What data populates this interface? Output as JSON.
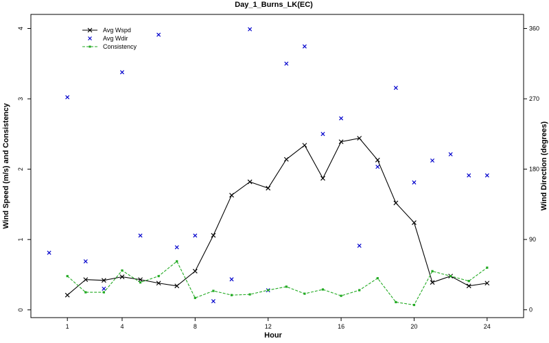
{
  "chart_data": {
    "type": "line",
    "title": "Day_1_Burns_LK(EC)",
    "xlabel": "Hour",
    "ylabel_left": "Wind Speed (m/s) and Consistency",
    "ylabel_right": "Wind Direction (degrees)",
    "xlim": [
      -1,
      26
    ],
    "ylim_left": [
      -0.11,
      4.2
    ],
    "ylim_right": [
      -10,
      378
    ],
    "xticks": [
      1,
      4,
      8,
      12,
      16,
      20,
      24
    ],
    "yticks_left": [
      0,
      1,
      2,
      3,
      4
    ],
    "yticks_right": [
      0,
      90,
      180,
      270,
      360
    ],
    "grid": false,
    "legend_position": "top-left",
    "series": [
      {
        "name": "Avg Wspd",
        "style": "line-x",
        "color": "#000000",
        "axis": "left",
        "x": [
          1,
          2,
          3,
          4,
          5,
          6,
          7,
          8,
          9,
          10,
          11,
          12,
          13,
          14,
          15,
          16,
          17,
          18,
          19,
          20,
          21,
          22,
          23,
          24
        ],
        "values": [
          0.21,
          0.43,
          0.42,
          0.47,
          0.43,
          0.38,
          0.34,
          0.55,
          1.06,
          1.63,
          1.82,
          1.73,
          2.14,
          2.34,
          1.87,
          2.39,
          2.44,
          2.13,
          1.52,
          1.24,
          0.39,
          0.48,
          0.34,
          0.38
        ]
      },
      {
        "name": "Avg Wdir",
        "style": "marker-x",
        "color": "#0000cc",
        "axis": "right",
        "x": [
          0,
          1,
          2,
          3,
          4,
          5,
          6,
          7,
          8,
          9,
          10,
          11,
          12,
          13,
          14,
          15,
          16,
          17,
          18,
          19,
          20,
          21,
          22,
          23,
          24
        ],
        "values": [
          73,
          272,
          62,
          27,
          304,
          95,
          352,
          80,
          95,
          11,
          39,
          359,
          25,
          315,
          337,
          225,
          245,
          82,
          183,
          284,
          163,
          191,
          199,
          172,
          172
        ]
      },
      {
        "name": "Consistency",
        "style": "dashed-square",
        "color": "#22aa22",
        "axis": "left",
        "x": [
          1,
          2,
          3,
          4,
          5,
          6,
          7,
          8,
          9,
          10,
          11,
          12,
          13,
          14,
          15,
          16,
          17,
          18,
          19,
          20,
          21,
          22,
          23,
          24
        ],
        "values": [
          0.48,
          0.25,
          0.25,
          0.56,
          0.39,
          0.48,
          0.69,
          0.17,
          0.27,
          0.21,
          0.22,
          0.28,
          0.33,
          0.23,
          0.29,
          0.2,
          0.28,
          0.45,
          0.11,
          0.07,
          0.55,
          0.48,
          0.41,
          0.6
        ]
      }
    ]
  }
}
